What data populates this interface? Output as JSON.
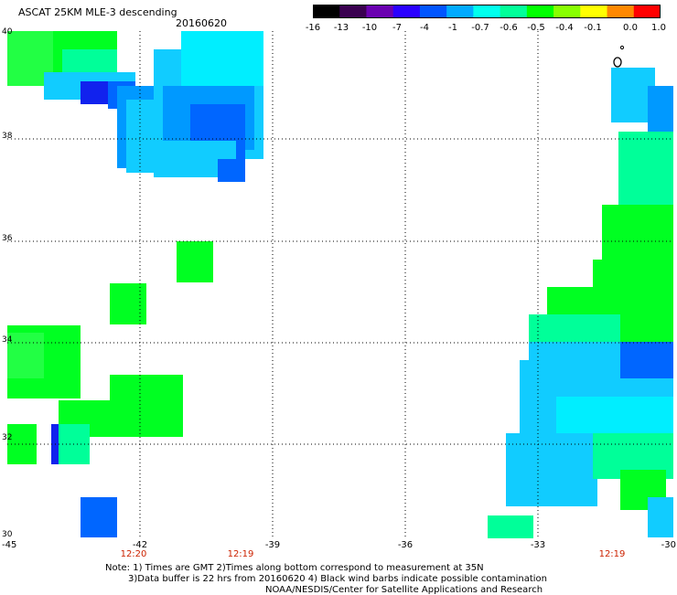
{
  "header": {
    "title": "ASCAT 25KM MLE-3 descending",
    "date": "20160620"
  },
  "colorbar": {
    "labels": [
      "-16",
      "-13",
      "-10",
      "-7",
      "-4",
      "-1",
      "-0.7",
      "-0.6",
      "-0.5",
      "-0.4",
      "-0.1",
      "0.0",
      "1.0"
    ],
    "colors": [
      "#000000",
      "#3a0050",
      "#6a00b0",
      "#2a00ff",
      "#0055ff",
      "#00aaff",
      "#00ffee",
      "#00ff99",
      "#00ff00",
      "#88ff00",
      "#ffff00",
      "#ff8800",
      "#ff0000"
    ]
  },
  "axes": {
    "lat_labels": [
      "40",
      "38",
      "36",
      "34",
      "32",
      "30"
    ],
    "lon_labels": [
      "-45",
      "-42",
      "-39",
      "-36",
      "-33",
      "-30"
    ],
    "time_labels": [
      "12:20",
      "12:19",
      "12:19"
    ]
  },
  "notes": {
    "line1": "Note: 1) Times are GMT 2)Times along bottom correspond to measurement at 35N",
    "line2": "3)Data buffer is 22 hrs from 20160620 4) Black wind barbs indicate possible contamination",
    "line3": "NOAA/NESDIS/Center for Satellite Applications and Research"
  },
  "palette": {
    "green": "#00ff22",
    "light_green": "#22ff44",
    "cyan": "#00eeff",
    "sky": "#11ccff",
    "mint": "#00ff99",
    "blue": "#0066ff",
    "deep_blue": "#1122ee",
    "mid_blue": "#0099ff"
  }
}
